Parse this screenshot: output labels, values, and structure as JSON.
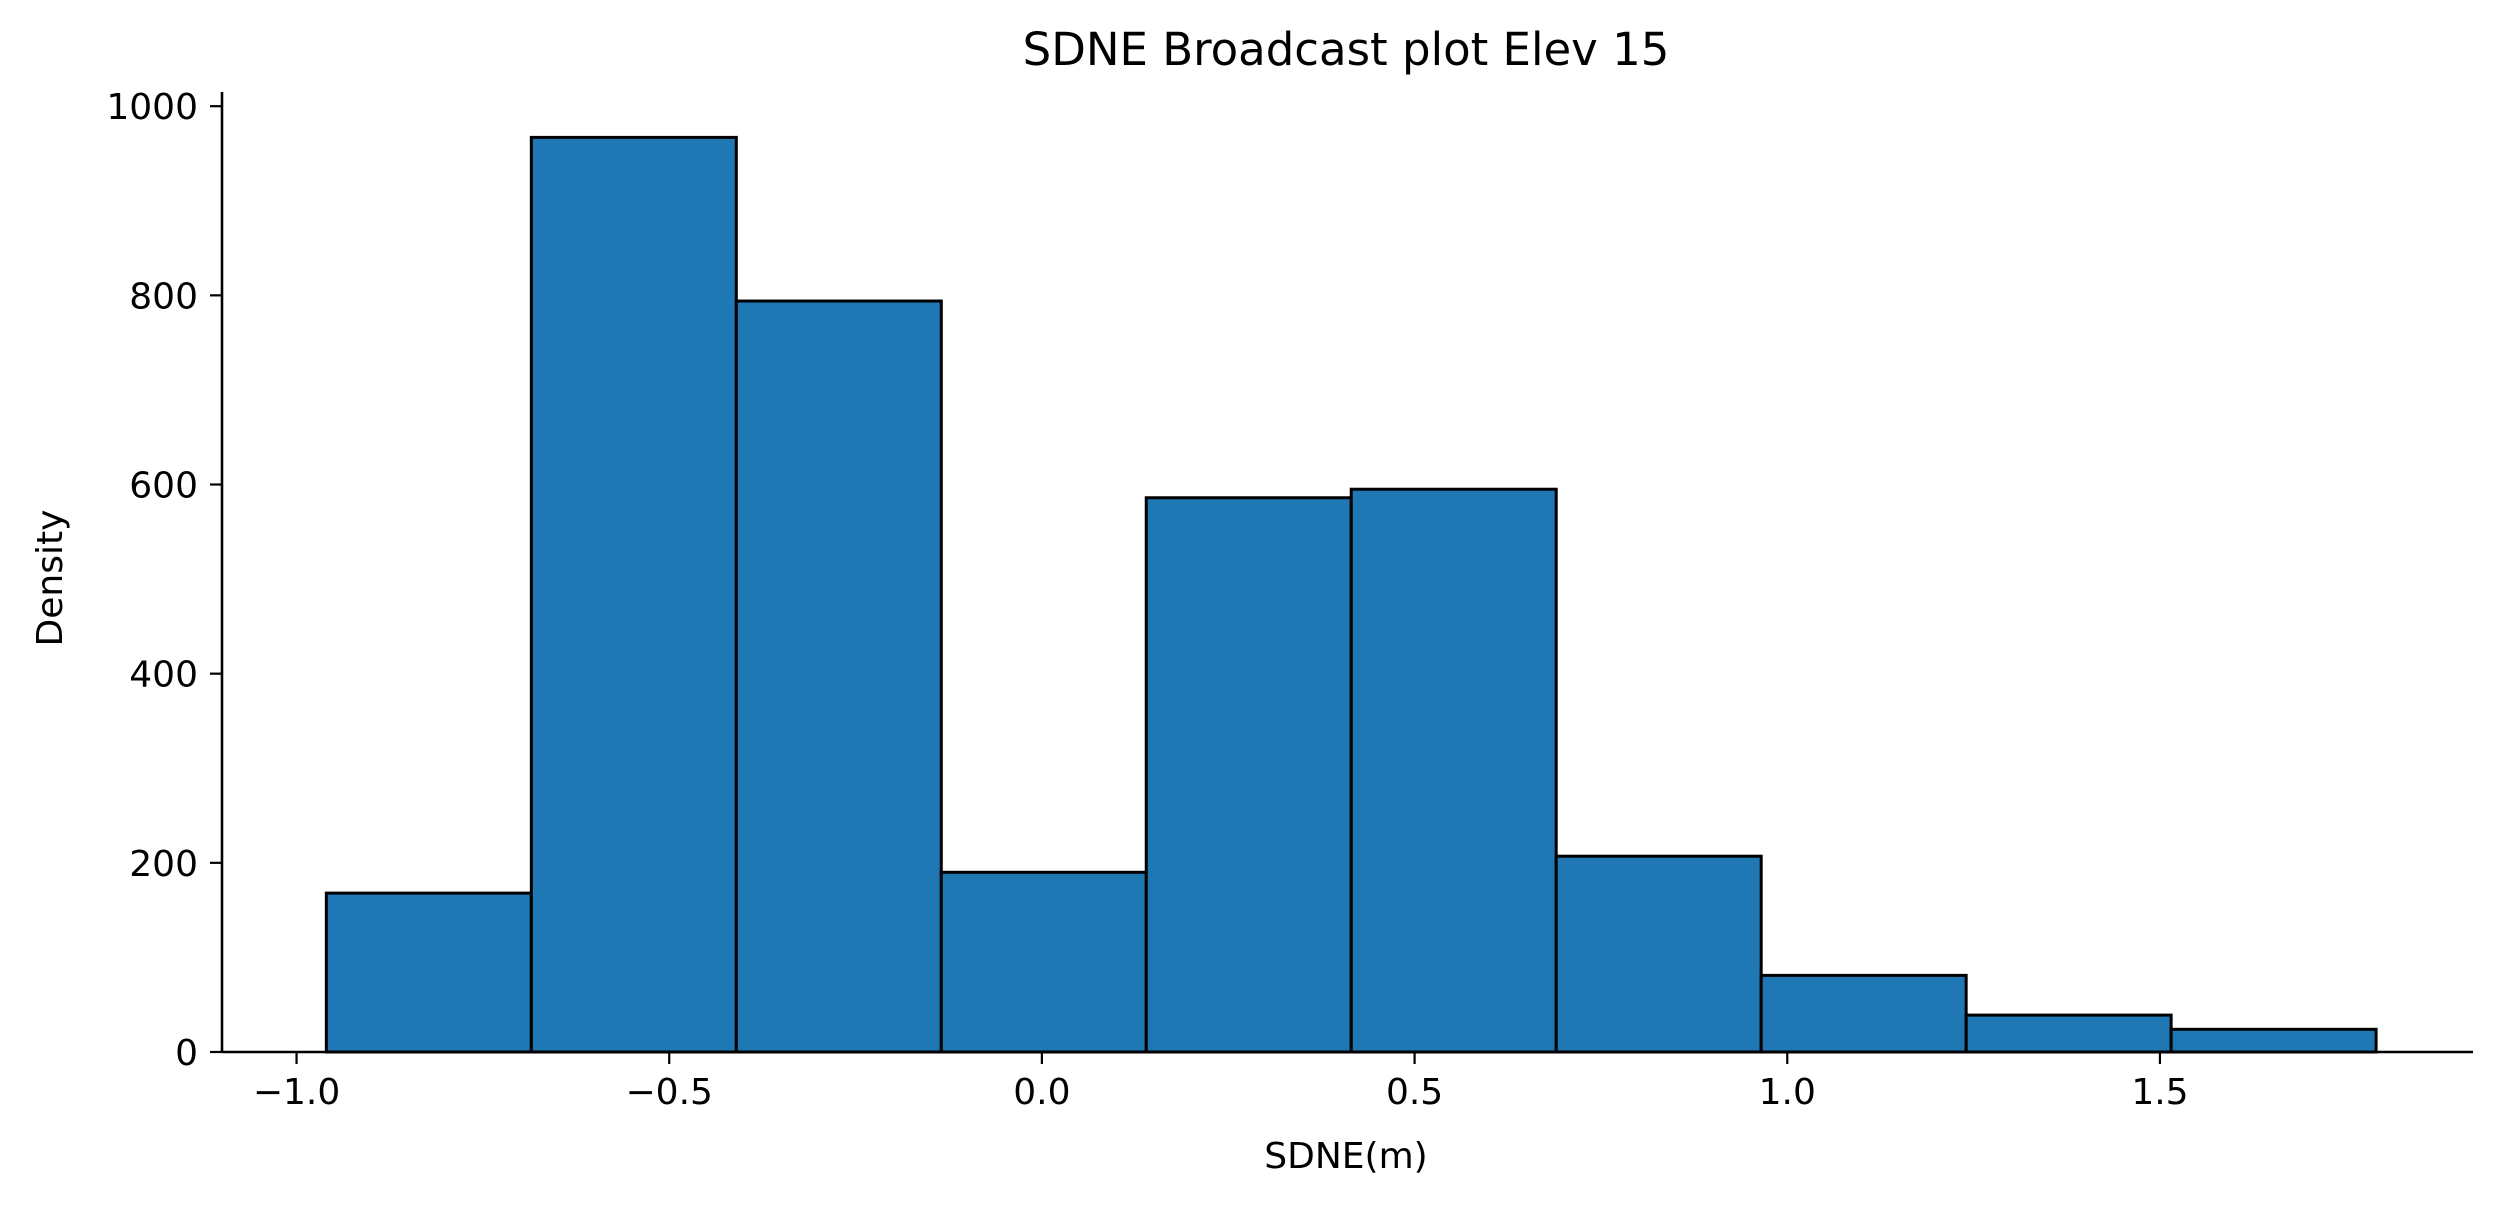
{
  "chart_data": {
    "type": "bar",
    "subtype": "histogram",
    "title": "SDNE Broadcast plot Elev 15",
    "xlabel": "SDNE(m)",
    "ylabel": "Density",
    "bin_edges": [
      -0.96,
      -0.685,
      -0.41,
      -0.135,
      0.14,
      0.415,
      0.69,
      0.965,
      1.24,
      1.515,
      1.79
    ],
    "values": [
      168,
      967,
      794,
      190,
      586,
      595,
      207,
      81,
      39,
      24
    ],
    "xlim": [
      -1.1,
      1.92
    ],
    "ylim": [
      0,
      1015
    ],
    "xticks": [
      -1.0,
      -0.5,
      0.0,
      0.5,
      1.0,
      1.5
    ],
    "xtick_labels": [
      "−1.0",
      "−0.5",
      "0.0",
      "0.5",
      "1.0",
      "1.5"
    ],
    "yticks": [
      0,
      200,
      400,
      600,
      800,
      1000
    ],
    "ytick_labels": [
      "0",
      "200",
      "400",
      "600",
      "800",
      "1000"
    ],
    "bar_color": "#1f77b4",
    "edge_color": "#000000",
    "grid": false,
    "legend": false
  }
}
